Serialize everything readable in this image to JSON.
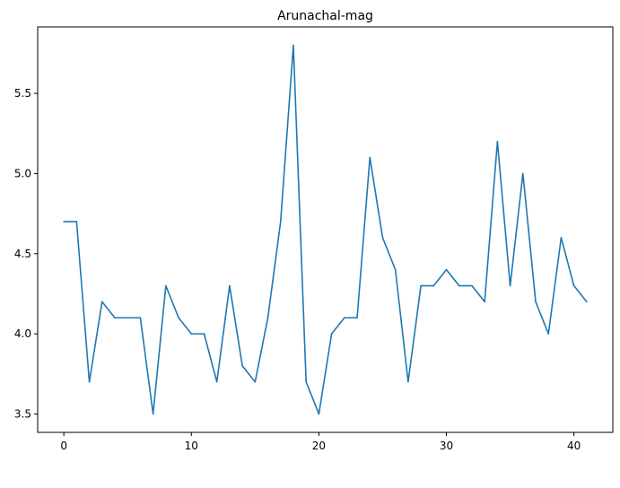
{
  "chart_data": {
    "type": "line",
    "title": "Arunachal-mag",
    "xlabel": "",
    "ylabel": "",
    "xlim": [
      -2.05,
      43.05
    ],
    "ylim": [
      3.385,
      5.915
    ],
    "x_ticks": [
      0,
      10,
      20,
      30,
      40
    ],
    "y_ticks": [
      3.5,
      4.0,
      4.5,
      5.0,
      5.5
    ],
    "x_tick_labels": [
      "0",
      "10",
      "20",
      "30",
      "40"
    ],
    "y_tick_labels": [
      "3.5",
      "4.0",
      "4.5",
      "5.0",
      "5.5"
    ],
    "grid": false,
    "series": [
      {
        "color": "#1f77b4",
        "x": [
          0,
          1,
          2,
          3,
          4,
          5,
          6,
          7,
          8,
          9,
          10,
          11,
          12,
          13,
          14,
          15,
          16,
          17,
          18,
          19,
          20,
          21,
          22,
          23,
          24,
          25,
          26,
          27,
          28,
          29,
          30,
          31,
          32,
          33,
          34,
          35,
          36,
          37,
          38,
          39,
          40,
          41
        ],
        "values": [
          4.7,
          4.7,
          3.7,
          4.2,
          4.1,
          4.1,
          4.1,
          3.5,
          4.3,
          4.1,
          4.0,
          4.0,
          3.7,
          4.3,
          3.8,
          3.7,
          4.1,
          4.7,
          5.8,
          3.7,
          3.5,
          4.0,
          4.1,
          4.1,
          5.1,
          4.6,
          4.4,
          3.7,
          4.3,
          4.3,
          4.4,
          4.3,
          4.3,
          4.2,
          5.2,
          4.3,
          5.0,
          4.2,
          4.0,
          4.6,
          4.3,
          4.2
        ]
      }
    ]
  }
}
